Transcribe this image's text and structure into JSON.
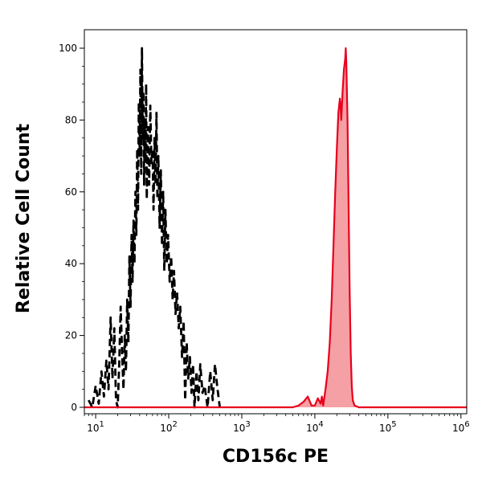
{
  "chart_data": {
    "type": "area",
    "xlabel": "CD156c PE",
    "ylabel": "Relative Cell Count",
    "x_scale": "log",
    "xlim": [
      7,
      1200000
    ],
    "ylim": [
      0,
      105
    ],
    "x_ticks": [
      {
        "value": 10,
        "base": "10",
        "exp": "1"
      },
      {
        "value": 100,
        "base": "10",
        "exp": "2"
      },
      {
        "value": 1000,
        "base": "10",
        "exp": "3"
      },
      {
        "value": 10000,
        "base": "10",
        "exp": "4"
      },
      {
        "value": 100000,
        "base": "10",
        "exp": "5"
      },
      {
        "value": 1000000,
        "base": "10",
        "exp": "6"
      }
    ],
    "y_ticks": [
      0,
      20,
      40,
      60,
      80,
      100
    ],
    "grid": false,
    "series": [
      {
        "style": "dashed",
        "color": "#000000",
        "fill": "none",
        "points": [
          [
            8,
            2
          ],
          [
            9,
            0
          ],
          [
            10,
            6
          ],
          [
            11,
            1
          ],
          [
            12,
            10
          ],
          [
            13,
            3
          ],
          [
            14,
            13
          ],
          [
            15,
            5
          ],
          [
            16,
            25
          ],
          [
            17,
            8
          ],
          [
            18,
            22
          ],
          [
            19,
            2
          ],
          [
            20,
            0
          ],
          [
            21,
            12
          ],
          [
            22,
            28
          ],
          [
            23,
            15
          ],
          [
            24,
            5
          ],
          [
            25,
            20
          ],
          [
            26,
            10
          ],
          [
            27,
            30
          ],
          [
            28,
            18
          ],
          [
            29,
            42
          ],
          [
            30,
            28
          ],
          [
            31,
            48
          ],
          [
            32,
            35
          ],
          [
            33,
            52
          ],
          [
            34,
            40
          ],
          [
            35,
            60
          ],
          [
            36,
            48
          ],
          [
            37,
            72
          ],
          [
            38,
            55
          ],
          [
            39,
            85
          ],
          [
            40,
            70
          ],
          [
            41,
            94
          ],
          [
            42,
            65
          ],
          [
            43,
            100
          ],
          [
            44,
            75
          ],
          [
            45,
            88
          ],
          [
            46,
            62
          ],
          [
            47,
            80
          ],
          [
            48,
            68
          ],
          [
            49,
            90
          ],
          [
            50,
            58
          ],
          [
            52,
            78
          ],
          [
            54,
            62
          ],
          [
            56,
            84
          ],
          [
            58,
            68
          ],
          [
            60,
            72
          ],
          [
            62,
            55
          ],
          [
            64,
            75
          ],
          [
            66,
            62
          ],
          [
            68,
            82
          ],
          [
            70,
            58
          ],
          [
            72,
            70
          ],
          [
            75,
            50
          ],
          [
            78,
            66
          ],
          [
            81,
            45
          ],
          [
            84,
            60
          ],
          [
            87,
            38
          ],
          [
            90,
            55
          ],
          [
            94,
            40
          ],
          [
            98,
            48
          ],
          [
            103,
            35
          ],
          [
            108,
            42
          ],
          [
            113,
            30
          ],
          [
            118,
            38
          ],
          [
            124,
            26
          ],
          [
            130,
            32
          ],
          [
            137,
            22
          ],
          [
            144,
            28
          ],
          [
            152,
            14
          ],
          [
            160,
            24
          ],
          [
            168,
            2
          ],
          [
            176,
            18
          ],
          [
            185,
            8
          ],
          [
            195,
            14
          ],
          [
            205,
            4
          ],
          [
            215,
            12
          ],
          [
            225,
            0
          ],
          [
            240,
            10
          ],
          [
            255,
            2
          ],
          [
            270,
            12
          ],
          [
            290,
            4
          ],
          [
            310,
            6
          ],
          [
            340,
            0
          ],
          [
            370,
            10
          ],
          [
            400,
            2
          ],
          [
            430,
            12
          ],
          [
            460,
            6
          ],
          [
            500,
            0
          ]
        ]
      },
      {
        "style": "solid",
        "color": "#e8001c",
        "fill": "#f5a0a5",
        "points": [
          [
            7,
            0
          ],
          [
            5000,
            0
          ],
          [
            6000,
            0.5
          ],
          [
            7000,
            1.5
          ],
          [
            8000,
            3
          ],
          [
            9000,
            0.5
          ],
          [
            10000,
            0.5
          ],
          [
            11000,
            2.5
          ],
          [
            12000,
            1
          ],
          [
            12500,
            3
          ],
          [
            13000,
            0.5
          ],
          [
            14000,
            5
          ],
          [
            15000,
            10
          ],
          [
            16000,
            18
          ],
          [
            17000,
            30
          ],
          [
            18000,
            45
          ],
          [
            19000,
            60
          ],
          [
            20000,
            72
          ],
          [
            21000,
            82
          ],
          [
            22000,
            86
          ],
          [
            22500,
            84
          ],
          [
            23000,
            80
          ],
          [
            24000,
            88
          ],
          [
            25000,
            94
          ],
          [
            26000,
            97
          ],
          [
            26500,
            100
          ],
          [
            27000,
            96
          ],
          [
            28000,
            80
          ],
          [
            29000,
            55
          ],
          [
            30000,
            32
          ],
          [
            31000,
            15
          ],
          [
            32000,
            6
          ],
          [
            33000,
            2
          ],
          [
            35000,
            0.5
          ],
          [
            40000,
            0
          ],
          [
            1200000,
            0
          ]
        ]
      }
    ]
  }
}
